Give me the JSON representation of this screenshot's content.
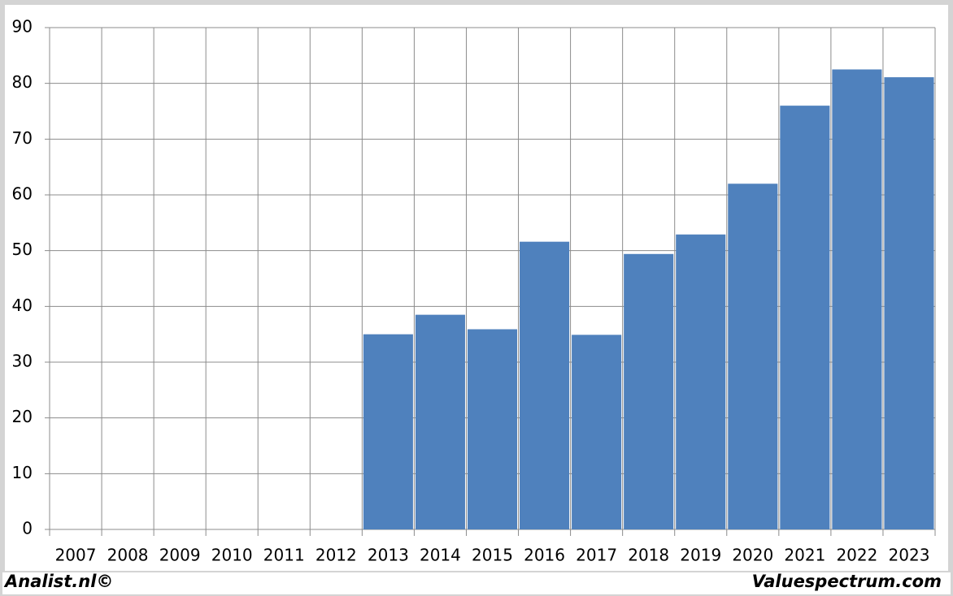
{
  "chart_data": {
    "type": "bar",
    "categories": [
      "2007",
      "2008",
      "2009",
      "2010",
      "2011",
      "2012",
      "2013",
      "2014",
      "2015",
      "2016",
      "2017",
      "2018",
      "2019",
      "2020",
      "2021",
      "2022",
      "2023"
    ],
    "values": [
      null,
      null,
      null,
      null,
      null,
      null,
      35,
      38.5,
      35.9,
      51.6,
      34.9,
      49.4,
      52.9,
      62,
      76,
      82.5,
      81.1
    ],
    "color": "#4f81bd",
    "ylim": [
      0,
      90
    ],
    "yticks": [
      0,
      10,
      20,
      30,
      40,
      50,
      60,
      70,
      80,
      90
    ],
    "grid": true
  },
  "footer": {
    "left": "Analist.nl©",
    "right": "Valuespectrum.com"
  }
}
